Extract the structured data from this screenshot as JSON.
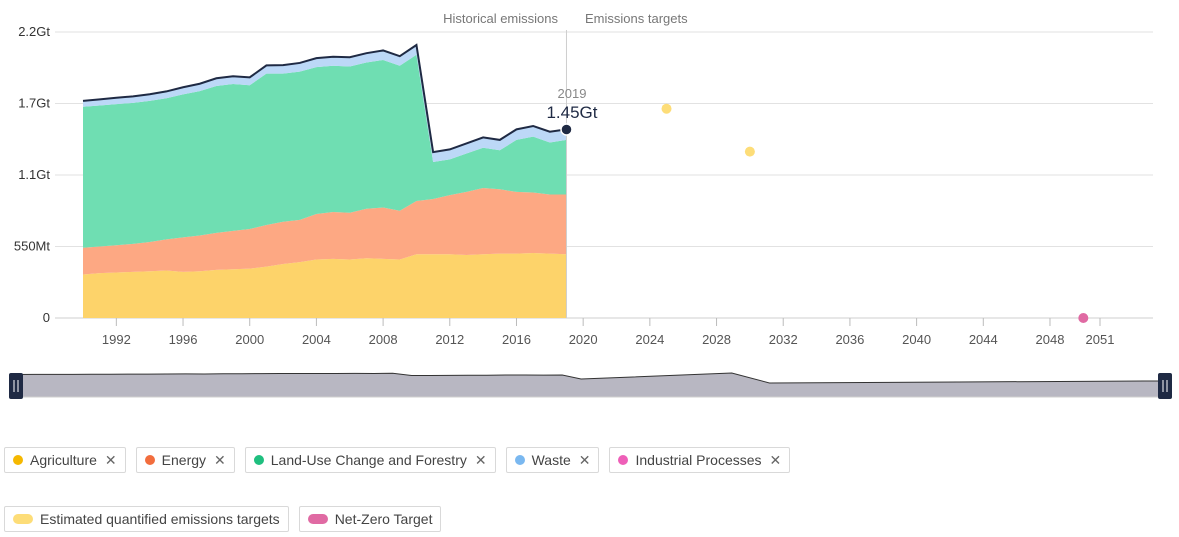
{
  "period_labels": {
    "historical": "Historical emissions",
    "targets": "Emissions targets"
  },
  "tooltip": {
    "year": "2019",
    "value": "1.45Gt"
  },
  "y_ticks": [
    {
      "label": "2.2Gt",
      "value": 2200
    },
    {
      "label": "1.7Gt",
      "value": 1650
    },
    {
      "label": "1.1Gt",
      "value": 1100
    },
    {
      "label": "550Mt",
      "value": 550
    },
    {
      "label": "0",
      "value": 0
    }
  ],
  "x_ticks": [
    "1992",
    "1996",
    "2000",
    "2004",
    "2008",
    "2012",
    "2016",
    "2020",
    "2024",
    "2028",
    "2032",
    "2036",
    "2040",
    "2044",
    "2048",
    "2051"
  ],
  "legend": [
    {
      "label": "Agriculture",
      "color": "#f5b800",
      "removable": true
    },
    {
      "label": "Energy",
      "color": "#f26d3d",
      "removable": true
    },
    {
      "label": "Land-Use Change and Forestry",
      "color": "#1fbf7f",
      "removable": true
    },
    {
      "label": "Waste",
      "color": "#7ab8f0",
      "removable": true
    },
    {
      "label": "Industrial Processes",
      "color": "#ee5fb8",
      "removable": true
    }
  ],
  "legend_targets": [
    {
      "label": "Estimated quantified emissions targets",
      "color": "#fddd78"
    },
    {
      "label": "Net-Zero Target",
      "color": "#e06aa3"
    }
  ],
  "chart_data": {
    "type": "area",
    "stacked": true,
    "x_unit": "year",
    "y_unit": "Mt CO2e",
    "ylim": [
      0,
      2200
    ],
    "xlim": [
      1990,
      2051
    ],
    "x": [
      1990,
      1991,
      1992,
      1993,
      1994,
      1995,
      1996,
      1997,
      1998,
      1999,
      2000,
      2001,
      2002,
      2003,
      2004,
      2005,
      2006,
      2007,
      2008,
      2009,
      2010,
      2011,
      2012,
      2013,
      2014,
      2015,
      2016,
      2017,
      2018,
      2019
    ],
    "series": [
      {
        "name": "Agriculture",
        "color": "#fdd36a",
        "values": [
          335,
          345,
          350,
          355,
          360,
          365,
          355,
          360,
          370,
          375,
          380,
          395,
          415,
          430,
          450,
          455,
          450,
          460,
          455,
          450,
          490,
          490,
          490,
          485,
          490,
          495,
          495,
          500,
          495,
          490
        ]
      },
      {
        "name": "Energy",
        "color": "#fda883",
        "values": [
          205,
          205,
          210,
          215,
          225,
          240,
          265,
          275,
          285,
          295,
          305,
          320,
          325,
          325,
          350,
          360,
          360,
          380,
          395,
          375,
          410,
          425,
          455,
          485,
          510,
          495,
          475,
          465,
          455,
          460
        ]
      },
      {
        "name": "Land-Use Change and Forestry",
        "color": "#6fdeb2",
        "values": [
          1085,
          1085,
          1085,
          1085,
          1085,
          1085,
          1100,
          1110,
          1130,
          1130,
          1105,
          1165,
          1140,
          1140,
          1130,
          1125,
          1125,
          1125,
          1135,
          1115,
          1125,
          285,
          275,
          295,
          310,
          300,
          400,
          430,
          400,
          420
        ]
      },
      {
        "name": "Waste",
        "color": "#bcd8f7",
        "values": [
          40,
          42,
          44,
          45,
          46,
          48,
          50,
          52,
          54,
          55,
          56,
          58,
          60,
          62,
          64,
          65,
          66,
          67,
          68,
          69,
          70,
          71,
          72,
          73,
          74,
          75,
          76,
          77,
          78,
          76
        ]
      },
      {
        "name": "Industrial Processes",
        "color": "#f7a8d8",
        "values": [
          5,
          5,
          5,
          5,
          5,
          5,
          5,
          5,
          5,
          5,
          5,
          5,
          5,
          5,
          5,
          5,
          5,
          5,
          5,
          5,
          5,
          5,
          5,
          5,
          5,
          5,
          5,
          5,
          5,
          5
        ]
      }
    ],
    "total_line": {
      "color": "#1f2a44"
    },
    "targets": [
      {
        "name": "Estimated quantified emissions targets",
        "x": 2025,
        "y": 1610,
        "color": "#fddd78"
      },
      {
        "name": "Estimated quantified emissions targets",
        "x": 2030,
        "y": 1280,
        "color": "#fddd78"
      },
      {
        "name": "Net-Zero Target",
        "x": 2050,
        "y": 0,
        "color": "#e06aa3"
      }
    ],
    "highlight": {
      "x": 2019,
      "y": 1450
    }
  }
}
